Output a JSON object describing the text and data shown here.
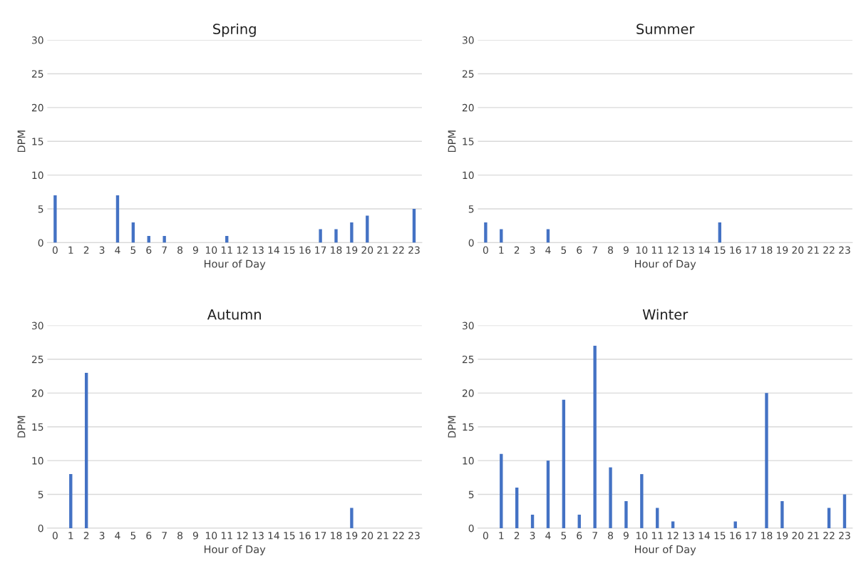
{
  "chart_data": [
    {
      "type": "bar",
      "title": "Spring",
      "xlabel": "Hour of Day",
      "ylabel": "DPM",
      "categories": [
        "0",
        "1",
        "2",
        "3",
        "4",
        "5",
        "6",
        "7",
        "8",
        "9",
        "10",
        "11",
        "12",
        "13",
        "14",
        "15",
        "16",
        "17",
        "18",
        "19",
        "20",
        "21",
        "22",
        "23"
      ],
      "series": [
        {
          "color": "#4472c4",
          "values": [
            7,
            0,
            0,
            0,
            7,
            3,
            1,
            1,
            0,
            0,
            0,
            1,
            0,
            0,
            0,
            0,
            0,
            2,
            2,
            3,
            4,
            0,
            0,
            5
          ]
        }
      ],
      "ylim": [
        0,
        30
      ],
      "yticks": [
        0,
        5,
        10,
        15,
        20,
        25,
        30
      ],
      "grid": "y",
      "legend": false
    },
    {
      "type": "bar",
      "title": "Summer",
      "xlabel": "Hour of Day",
      "ylabel": "DPM",
      "categories": [
        "0",
        "1",
        "2",
        "3",
        "4",
        "5",
        "6",
        "7",
        "8",
        "9",
        "10",
        "11",
        "12",
        "13",
        "14",
        "15",
        "16",
        "17",
        "18",
        "19",
        "20",
        "21",
        "22",
        "23"
      ],
      "series": [
        {
          "color": "#4472c4",
          "values": [
            3,
            2,
            0,
            0,
            2,
            0,
            0,
            0,
            0,
            0,
            0,
            0,
            0,
            0,
            0,
            3,
            0,
            0,
            0,
            0,
            0,
            0,
            0,
            0
          ]
        }
      ],
      "ylim": [
        0,
        30
      ],
      "yticks": [
        0,
        5,
        10,
        15,
        20,
        25,
        30
      ],
      "grid": "y",
      "legend": false
    },
    {
      "type": "bar",
      "title": "Autumn",
      "xlabel": "Hour of Day",
      "ylabel": "DPM",
      "categories": [
        "0",
        "1",
        "2",
        "3",
        "4",
        "5",
        "6",
        "7",
        "8",
        "9",
        "10",
        "11",
        "12",
        "13",
        "14",
        "15",
        "16",
        "17",
        "18",
        "19",
        "20",
        "21",
        "22",
        "23"
      ],
      "series": [
        {
          "color": "#4472c4",
          "values": [
            0,
            8,
            23,
            0,
            0,
            0,
            0,
            0,
            0,
            0,
            0,
            0,
            0,
            0,
            0,
            0,
            0,
            0,
            0,
            3,
            0,
            0,
            0,
            0
          ]
        }
      ],
      "ylim": [
        0,
        30
      ],
      "yticks": [
        0,
        5,
        10,
        15,
        20,
        25,
        30
      ],
      "grid": "y",
      "legend": false
    },
    {
      "type": "bar",
      "title": "Winter",
      "xlabel": "Hour of Day",
      "ylabel": "DPM",
      "categories": [
        "0",
        "1",
        "2",
        "3",
        "4",
        "5",
        "6",
        "7",
        "8",
        "9",
        "10",
        "11",
        "12",
        "13",
        "14",
        "15",
        "16",
        "17",
        "18",
        "19",
        "20",
        "21",
        "22",
        "23"
      ],
      "series": [
        {
          "color": "#4472c4",
          "values": [
            0,
            11,
            6,
            2,
            10,
            19,
            2,
            27,
            9,
            4,
            8,
            3,
            1,
            0,
            0,
            0,
            1,
            0,
            20,
            4,
            0,
            0,
            3,
            5
          ]
        }
      ],
      "ylim": [
        0,
        30
      ],
      "yticks": [
        0,
        5,
        10,
        15,
        20,
        25,
        30
      ],
      "grid": "y",
      "legend": false
    }
  ]
}
